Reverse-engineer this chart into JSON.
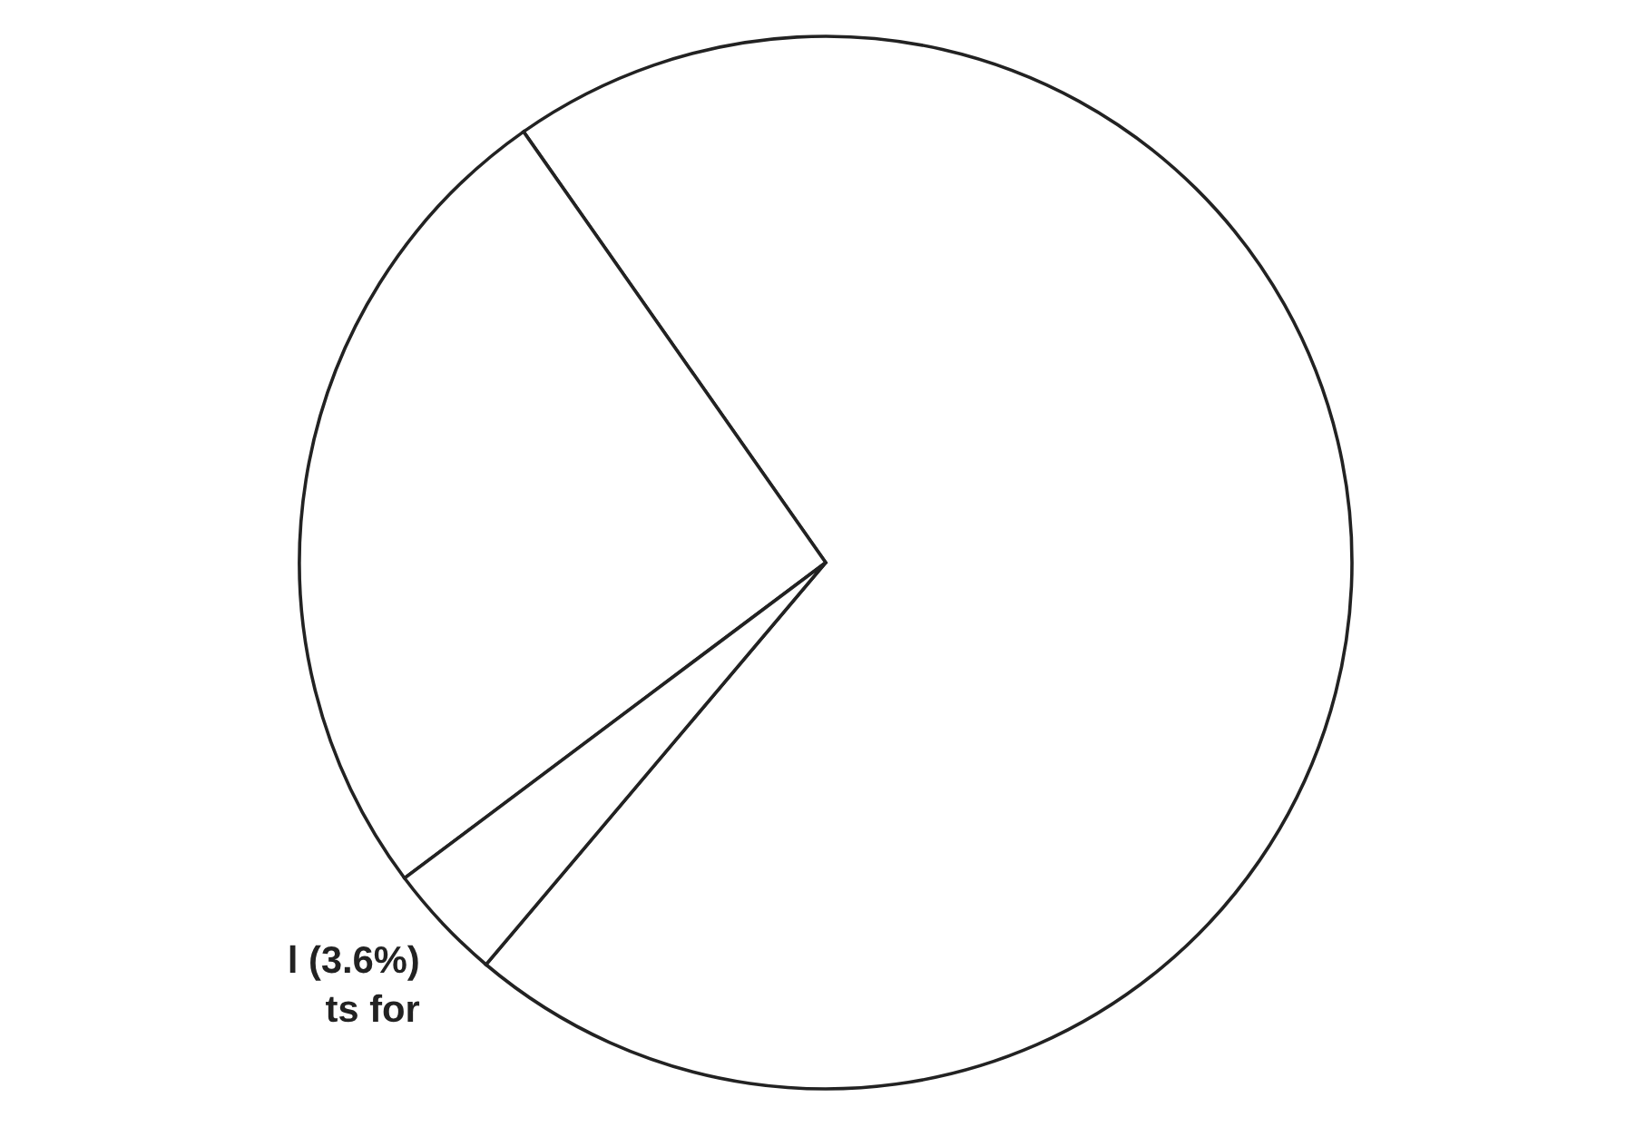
{
  "chart_data": {
    "type": "pie",
    "categories": [
      null,
      null,
      "l (3.6%)\nts for"
    ],
    "values": [
      70.9,
      25.5,
      3.6
    ],
    "colors": [
      "#ffffff",
      "#ffffff",
      "#ffffff"
    ]
  }
}
